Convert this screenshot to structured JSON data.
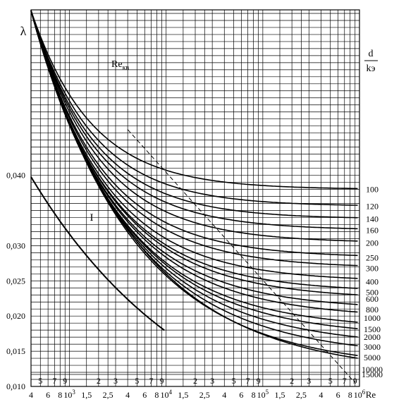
{
  "chart_data": {
    "type": "line",
    "title": "",
    "ylabel": "λ",
    "xlabel": "Re",
    "x_scale": "log",
    "xlim": [
      4000,
      1000000
    ],
    "ylim": [
      0.01,
      0.0635
    ],
    "y_ticks": [
      {
        "value": 0.01,
        "label": "0,010"
      },
      {
        "value": 0.015,
        "label": "0,015"
      },
      {
        "value": 0.02,
        "label": "0,020"
      },
      {
        "value": 0.025,
        "label": "0,025"
      },
      {
        "value": 0.03,
        "label": "0,030"
      },
      {
        "value": 0.04,
        "label": "0,040"
      }
    ],
    "x_ticks_main": [
      {
        "value": 4000,
        "label": "4"
      },
      {
        "value": 6000,
        "label": "6"
      },
      {
        "value": 8000,
        "label": "8"
      },
      {
        "value": 10000,
        "label": "10",
        "sup": "3"
      },
      {
        "value": 15000,
        "label": "1,5"
      },
      {
        "value": 25000,
        "label": "2,5"
      },
      {
        "value": 40000,
        "label": "4"
      },
      {
        "value": 60000,
        "label": "6"
      },
      {
        "value": 80000,
        "label": "8"
      },
      {
        "value": 100000,
        "label": "10",
        "sup": "4"
      },
      {
        "value": 150000,
        "label": "1,5"
      },
      {
        "value": 250000,
        "label": "2,5"
      },
      {
        "value": 400000,
        "label": "4"
      },
      {
        "value": 600000,
        "label": "6"
      },
      {
        "value": 800000,
        "label": "8"
      },
      {
        "value": 1000000,
        "label": "10",
        "sup": "5"
      },
      {
        "value": 1500000,
        "label": "1,5"
      },
      {
        "value": 2500000,
        "label": "2,5"
      },
      {
        "value": 4000000,
        "label": "4"
      },
      {
        "value": 6000000,
        "label": "6"
      },
      {
        "value": 8000000,
        "label": "8"
      },
      {
        "value": 10000000,
        "label": "10",
        "sup": "6"
      }
    ],
    "x_ticks_upper": [
      {
        "value": 5000,
        "label": "5"
      },
      {
        "value": 7000,
        "label": "7"
      },
      {
        "value": 9000,
        "label": "9"
      },
      {
        "value": 20000,
        "label": "2"
      },
      {
        "value": 30000,
        "label": "3"
      },
      {
        "value": 50000,
        "label": "5"
      },
      {
        "value": 70000,
        "label": "7"
      },
      {
        "value": 90000,
        "label": "9"
      },
      {
        "value": 200000,
        "label": "2"
      },
      {
        "value": 300000,
        "label": "3"
      },
      {
        "value": 500000,
        "label": "5"
      },
      {
        "value": 700000,
        "label": "7"
      },
      {
        "value": 900000,
        "label": "9"
      },
      {
        "value": 2000000,
        "label": "2"
      },
      {
        "value": 3000000,
        "label": "3"
      },
      {
        "value": 5000000,
        "label": "5"
      },
      {
        "value": 7000000,
        "label": "7"
      },
      {
        "value": 9000000,
        "label": "9"
      }
    ],
    "xlim_full": [
      4000,
      10000000
    ],
    "curve_label_title_num": "d",
    "curve_label_title_den": "kэ",
    "curves": [
      {
        "label": "100",
        "lambda_rough": 0.038
      },
      {
        "label": "120",
        "lambda_rough": 0.0356
      },
      {
        "label": "140",
        "lambda_rough": 0.0338
      },
      {
        "label": "160",
        "lambda_rough": 0.0322
      },
      {
        "label": "200",
        "lambda_rough": 0.0304
      },
      {
        "label": "250",
        "lambda_rough": 0.0283
      },
      {
        "label": "300",
        "lambda_rough": 0.0268
      },
      {
        "label": "400",
        "lambda_rough": 0.0249
      },
      {
        "label": "500",
        "lambda_rough": 0.0234
      },
      {
        "label": "600",
        "lambda_rough": 0.0224
      },
      {
        "label": "800",
        "lambda_rough": 0.0209
      },
      {
        "label": "1000",
        "lambda_rough": 0.0197
      },
      {
        "label": "1500",
        "lambda_rough": 0.0181
      },
      {
        "label": "2000",
        "lambda_rough": 0.017
      },
      {
        "label": "3000",
        "lambda_rough": 0.0156
      },
      {
        "label": "5000",
        "lambda_rough": 0.0141
      },
      {
        "label": "10000",
        "lambda_rough": 0.0124
      },
      {
        "label": "15000",
        "lambda_rough": 0.0117
      }
    ],
    "annotations": {
      "re_kv_label": "Re",
      "re_kv_sub": "кв",
      "smooth_curve_label": "I"
    },
    "grid": true,
    "legend": "right"
  }
}
